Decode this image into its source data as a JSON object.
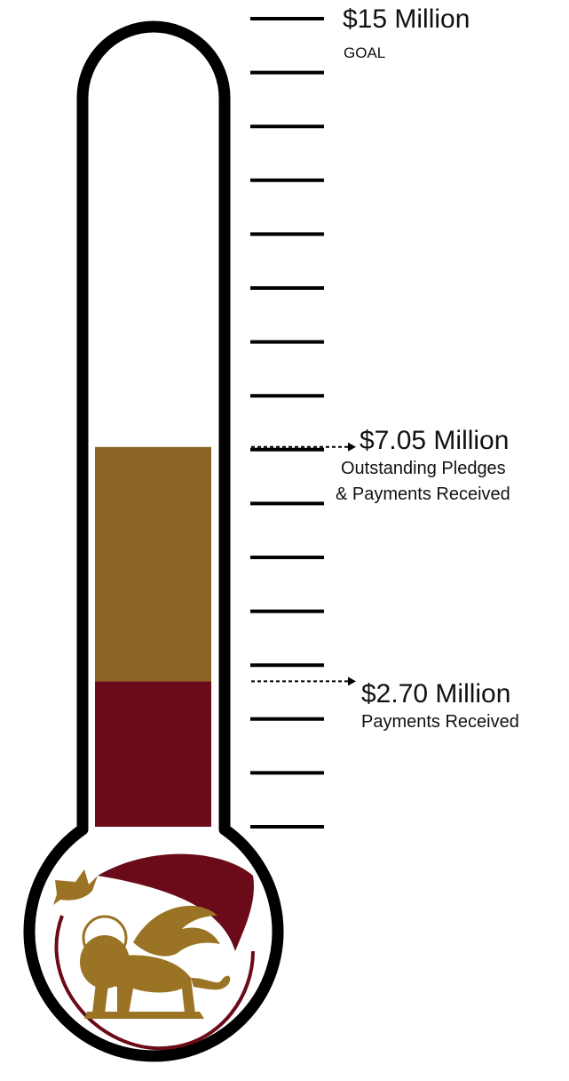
{
  "chart_data": {
    "type": "thermometer",
    "unit": "$ Million",
    "goal": {
      "value": 15,
      "amount_label": "$15 Million",
      "caption": "GOAL"
    },
    "markers": [
      {
        "value": 7.05,
        "amount_label": "$7.05 Million",
        "caption_lines": [
          "Outstanding Pledges",
          "& Payments Received"
        ]
      },
      {
        "value": 2.7,
        "amount_label": "$2.70 Million",
        "caption_lines": [
          "Payments Received"
        ]
      }
    ],
    "fill_segments": [
      {
        "from": 0,
        "to": 2.7,
        "color": "#6b0a18"
      },
      {
        "from": 2.7,
        "to": 7.05,
        "color": "#8a6422"
      }
    ],
    "tick_count": 16
  },
  "colors": {
    "outline": "#000000",
    "tube": "#ffffff",
    "payments": "#6b0a18",
    "pledges": "#8a6422",
    "gold": "#9a7324",
    "maroon": "#6b0a18"
  },
  "logo": {
    "icons": [
      "dove-icon",
      "feather-icon",
      "winged-lion-icon"
    ]
  }
}
